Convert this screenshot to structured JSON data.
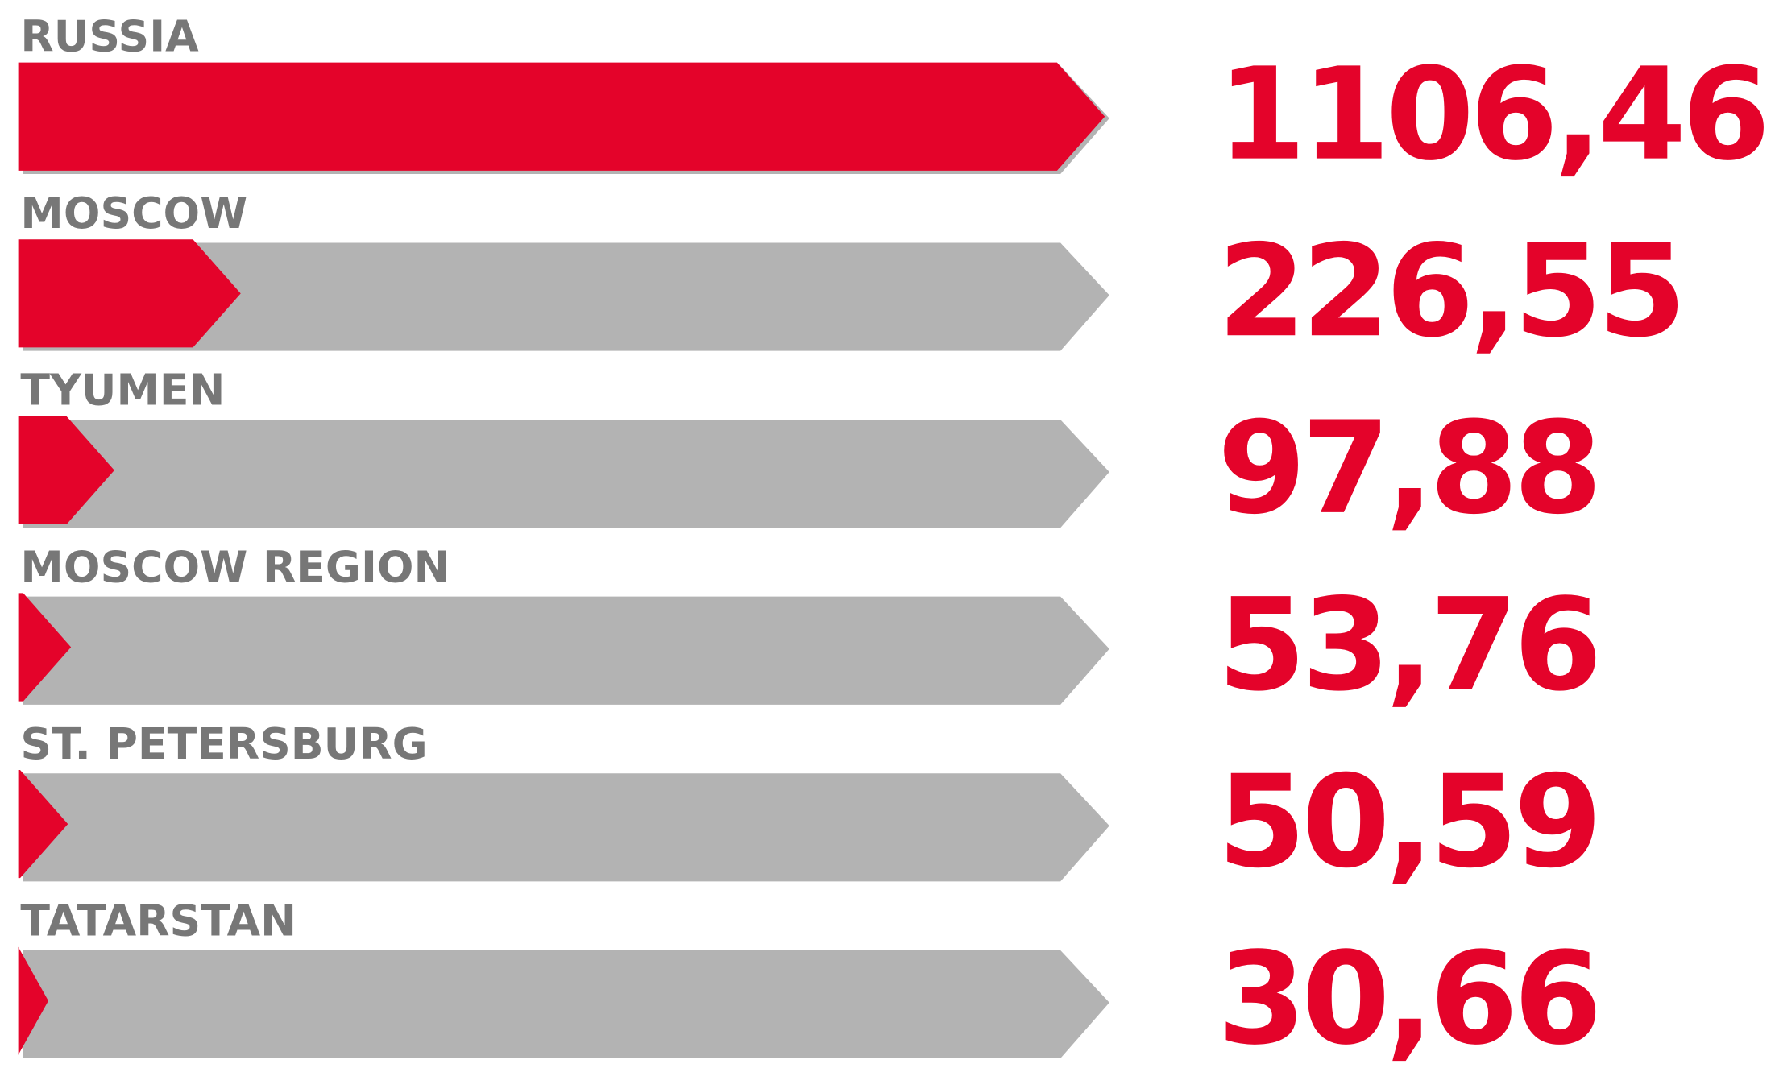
{
  "chart_data": {
    "type": "arrow-bar",
    "categories": [
      "RUSSIA",
      "MOSCOW",
      "TYUMEN",
      "MOSCOW REGION",
      "ST. PETERSBURG",
      "TATARSTAN"
    ],
    "values": [
      1106.46,
      226.55,
      97.88,
      53.76,
      50.59,
      30.66
    ],
    "value_labels": [
      "1106,46",
      "226,55",
      "97,88",
      "53,76",
      "50,59",
      "30,66"
    ],
    "color": "#e4032a",
    "track_color": "#b3b3b3",
    "label_color": "#777777"
  }
}
